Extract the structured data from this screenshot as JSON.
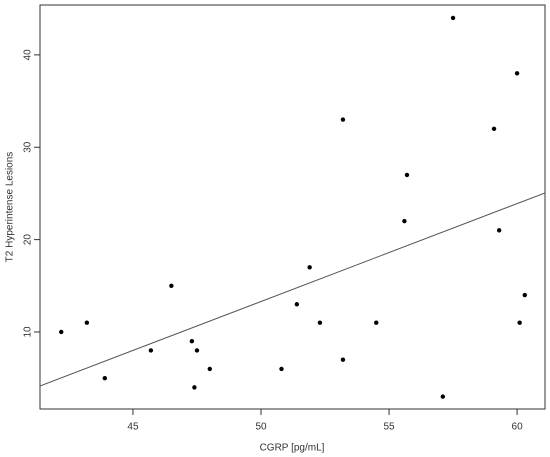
{
  "chart_data": {
    "type": "scatter",
    "x_label": "CGRP [pg/mL]",
    "y_label": "T2 Hyperintense Lesions",
    "x": [
      42.2,
      43.2,
      43.9,
      45.7,
      46.5,
      47.3,
      47.5,
      47.4,
      48.0,
      50.8,
      51.4,
      51.9,
      52.3,
      53.2,
      53.2,
      54.5,
      55.6,
      55.7,
      57.1,
      57.5,
      59.1,
      59.3,
      60.0,
      60.1,
      60.3
    ],
    "values": [
      10,
      11,
      5,
      8,
      15,
      9,
      8,
      4,
      6,
      6,
      13,
      17,
      11,
      33,
      7,
      11,
      22,
      27,
      3,
      44,
      32,
      21,
      38,
      11,
      14
    ],
    "color": "#000000",
    "regression": {
      "slope": 1.06,
      "intercept": -39.7,
      "color": "#555555"
    },
    "xlim": [
      41.37,
      61.09
    ],
    "xticks": [
      45,
      50,
      55,
      60
    ],
    "ylim": [
      1.66,
      45.4
    ],
    "yticks": [
      10,
      20,
      30,
      40
    ]
  }
}
